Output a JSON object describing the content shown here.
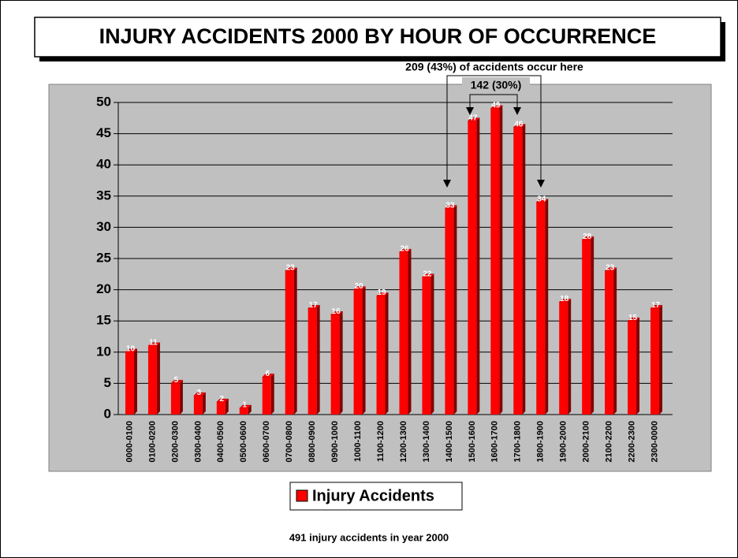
{
  "chart_data": {
    "type": "bar",
    "title": "INJURY ACCIDENTS 2000 BY HOUR OF OCCURRENCE",
    "categories": [
      "0000-0100",
      "0100-0200",
      "0200-0300",
      "0300-0400",
      "0400-0500",
      "0500-0600",
      "0600-0700",
      "0700-0800",
      "0800-0900",
      "0900-1000",
      "1000-1100",
      "1100-1200",
      "1200-1300",
      "1300-1400",
      "1400-1500",
      "1500-1600",
      "1600-1700",
      "1700-1800",
      "1800-1900",
      "1900-2000",
      "2000-2100",
      "2100-2200",
      "2200-2300",
      "2300-0000"
    ],
    "series": [
      {
        "name": "Injury Accidents",
        "color": "#ff0000",
        "values": [
          10,
          11,
          5,
          3,
          2,
          1,
          6,
          23,
          17,
          16,
          20,
          19,
          26,
          22,
          33,
          47,
          49,
          46,
          34,
          18,
          28,
          23,
          15,
          17
        ]
      }
    ],
    "ylim": [
      0,
      50
    ],
    "yticks": [
      0,
      5,
      10,
      15,
      20,
      25,
      30,
      35,
      40,
      45,
      50
    ],
    "grid": true,
    "annotations": [
      "209 (43%) of accidents occur here",
      "142 (30%)"
    ],
    "footnote": "491 injury accidents in year 2000"
  }
}
